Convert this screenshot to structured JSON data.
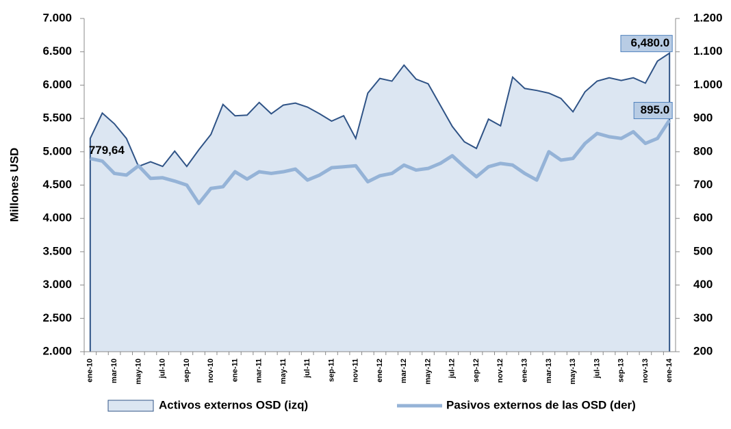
{
  "chart_data": {
    "type": "area-line",
    "y_label": "Millones USD",
    "categories": [
      "ene-10",
      null,
      "mar-10",
      null,
      "may-10",
      null,
      "jul-10",
      null,
      "sep-10",
      null,
      "nov-10",
      null,
      "ene-11",
      null,
      "mar-11",
      null,
      "may-11",
      null,
      "jul-11",
      null,
      "sep-11",
      null,
      "nov-11",
      null,
      "ene-12",
      null,
      "mar-12",
      null,
      "may-12",
      null,
      "jul-12",
      null,
      "sep-12",
      null,
      "nov-12",
      null,
      "ene-13",
      null,
      "mar-13",
      null,
      "may-13",
      null,
      "jul-13",
      null,
      "sep-13",
      null,
      "nov-13",
      null,
      "ene-14"
    ],
    "series": [
      {
        "name": "Activos externos OSD (izq)",
        "color": "#dce6f2",
        "line_color": "#2f5386",
        "axis": "y",
        "values": [
          5200,
          5580,
          5420,
          5200,
          4780,
          4850,
          4780,
          5010,
          4780,
          5030,
          5260,
          5710,
          5540,
          5550,
          5740,
          5570,
          5700,
          5730,
          5670,
          5570,
          5460,
          5540,
          5200,
          5880,
          6100,
          6060,
          6300,
          6090,
          6020,
          5700,
          5380,
          5150,
          5050,
          5490,
          5390,
          6120,
          5950,
          5920,
          5880,
          5800,
          5600,
          5900,
          6060,
          6110,
          6070,
          6110,
          6030,
          6360,
          6480
        ],
        "value_labels": [
          null,
          null,
          null,
          null,
          null,
          null,
          null,
          null,
          null,
          null,
          null,
          null,
          null,
          null,
          null,
          null,
          null,
          null,
          null,
          null,
          null,
          null,
          null,
          null,
          null,
          null,
          null,
          null,
          null,
          null,
          null,
          null,
          null,
          null,
          null,
          null,
          null,
          null,
          null,
          null,
          null,
          null,
          null,
          null,
          null,
          null,
          null,
          null,
          "6,480.0"
        ]
      },
      {
        "name": "Pasivos externos de las OSD (der)",
        "color": "#95b3d7",
        "axis": "y2",
        "values": [
          779.64,
          772,
          735,
          730,
          758,
          720,
          722,
          712,
          700,
          645,
          690,
          695,
          740,
          718,
          740,
          735,
          740,
          748,
          715,
          730,
          752,
          755,
          758,
          710,
          728,
          735,
          760,
          745,
          750,
          765,
          788,
          755,
          725,
          755,
          765,
          760,
          735,
          715,
          800,
          775,
          780,
          825,
          855,
          845,
          840,
          860,
          825,
          840,
          895
        ],
        "value_labels": [
          "779,64",
          null,
          null,
          null,
          null,
          null,
          null,
          null,
          null,
          null,
          null,
          null,
          null,
          null,
          null,
          null,
          null,
          null,
          null,
          null,
          null,
          null,
          null,
          null,
          null,
          null,
          null,
          null,
          null,
          null,
          null,
          null,
          null,
          null,
          null,
          null,
          null,
          null,
          null,
          null,
          null,
          null,
          null,
          null,
          null,
          null,
          null,
          null,
          "895.0"
        ]
      }
    ],
    "ylim": [
      2000,
      7000
    ],
    "yticks": [
      {
        "value": 2000,
        "label": "2.000"
      },
      {
        "value": 2500,
        "label": "2.500"
      },
      {
        "value": 3000,
        "label": "3.000"
      },
      {
        "value": 3500,
        "label": "3.500"
      },
      {
        "value": 4000,
        "label": "4.000"
      },
      {
        "value": 4500,
        "label": "4.500"
      },
      {
        "value": 5000,
        "label": "5.000"
      },
      {
        "value": 5500,
        "label": "5.500"
      },
      {
        "value": 6000,
        "label": "6.000"
      },
      {
        "value": 6500,
        "label": "6.500"
      },
      {
        "value": 7000,
        "label": "7.000"
      }
    ],
    "y2lim": [
      200,
      1200
    ],
    "y2ticks": [
      200,
      300,
      400,
      500,
      600,
      700,
      800,
      900,
      {
        "value": 1000,
        "label": "1.000"
      },
      {
        "value": 1100,
        "label": "1.100"
      },
      {
        "value": 1200,
        "label": "1.200"
      }
    ]
  }
}
